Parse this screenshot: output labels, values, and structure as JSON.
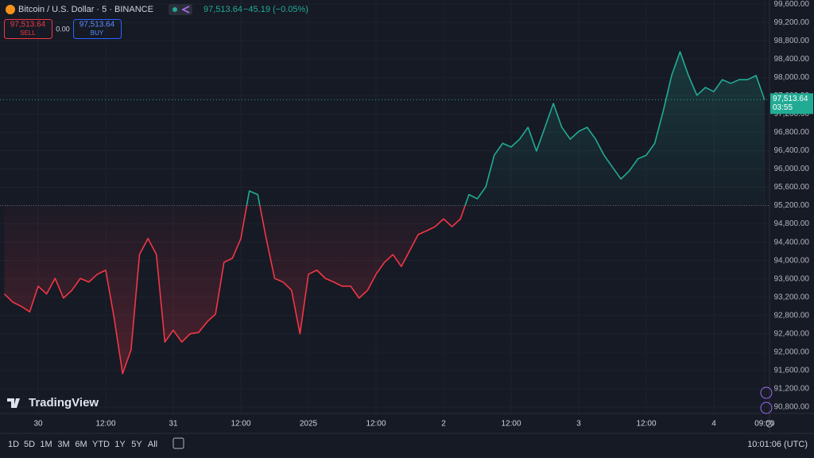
{
  "chart_data": {
    "type": "baseline",
    "header": {
      "symbol": "Bitcoin / U.S. Dollar · 5 · BINANCE",
      "price": "97,513.64",
      "change": "−45.19 (−0.05%)"
    },
    "trade": {
      "sell_price": "97,513.64",
      "sell": "SELL",
      "spread": "0.00",
      "buy_price": "97,513.64",
      "buy": "BUY"
    },
    "categories": [
      null,
      null,
      null,
      null,
      "30",
      null,
      null,
      null,
      null,
      null,
      null,
      null,
      "12:00",
      null,
      null,
      null,
      null,
      null,
      null,
      null,
      "31",
      null,
      null,
      null,
      null,
      null,
      null,
      null,
      "12:00",
      null,
      null,
      null,
      null,
      null,
      null,
      null,
      "2025",
      null,
      null,
      null,
      null,
      null,
      null,
      null,
      "12:00",
      null,
      null,
      null,
      null,
      null,
      null,
      null,
      "2",
      null,
      null,
      null,
      null,
      null,
      null,
      null,
      "12:00",
      null,
      null,
      null,
      null,
      null,
      null,
      null,
      "3",
      null,
      null,
      null,
      null,
      null,
      null,
      null,
      "12:00",
      null,
      null,
      null,
      null,
      null,
      null,
      null,
      "4",
      null,
      null,
      null,
      null,
      null,
      "09:00"
    ],
    "values": [
      93270,
      93090,
      93000,
      92880,
      93440,
      93270,
      93610,
      93180,
      93350,
      93610,
      93530,
      93700,
      93790,
      92740,
      91530,
      92050,
      94130,
      94480,
      94130,
      92220,
      92480,
      92220,
      92400,
      92430,
      92660,
      92830,
      93960,
      94050,
      94480,
      95520,
      95440,
      94480,
      93610,
      93530,
      93350,
      92400,
      93700,
      93790,
      93610,
      93530,
      93440,
      93440,
      93180,
      93350,
      93700,
      93960,
      94130,
      93870,
      94220,
      94570,
      94650,
      94740,
      94910,
      94740,
      94910,
      95440,
      95350,
      95610,
      96300,
      96560,
      96480,
      96650,
      96910,
      96390,
      96910,
      97430,
      96910,
      96650,
      96820,
      96910,
      96650,
      96300,
      96040,
      95780,
      95960,
      96220,
      96300,
      96560,
      97260,
      98040,
      98560,
      98040,
      97610,
      97780,
      97690,
      97950,
      97870,
      97950,
      97950,
      98040,
      97513.64
    ],
    "last_label": "97,513.64",
    "countdown": "03:55",
    "baseline": 95200,
    "color_above": "#22ab94",
    "color_below": "#f23645",
    "ylim": [
      90660,
      99690
    ],
    "yticks": [
      {
        "value": 90800,
        "label": "90,800.00"
      },
      {
        "value": 91200,
        "label": "91,200.00"
      },
      {
        "value": 91600,
        "label": "91,600.00"
      },
      {
        "value": 92000,
        "label": "92,000.00"
      },
      {
        "value": 92400,
        "label": "92,400.00"
      },
      {
        "value": 92800,
        "label": "92,800.00"
      },
      {
        "value": 93200,
        "label": "93,200.00"
      },
      {
        "value": 93600,
        "label": "93,600.00"
      },
      {
        "value": 94000,
        "label": "94,000.00"
      },
      {
        "value": 94400,
        "label": "94,400.00"
      },
      {
        "value": 94800,
        "label": "94,800.00"
      },
      {
        "value": 95200,
        "label": "95,200.00"
      },
      {
        "value": 95600,
        "label": "95,600.00"
      },
      {
        "value": 96000,
        "label": "96,000.00"
      },
      {
        "value": 96400,
        "label": "96,400.00"
      },
      {
        "value": 96800,
        "label": "96,800.00"
      },
      {
        "value": 97200,
        "label": "97,200.00"
      },
      {
        "value": 97600,
        "label": "97,600.00"
      },
      {
        "value": 98000,
        "label": "98,000.00"
      },
      {
        "value": 98400,
        "label": "98,400.00"
      },
      {
        "value": 98800,
        "label": "98,800.00"
      },
      {
        "value": 99200,
        "label": "99,200.00"
      },
      {
        "value": 99600,
        "label": "99,600.00"
      }
    ],
    "grid": true,
    "watermark": "TradingView",
    "ranges": [
      "1D",
      "5D",
      "1M",
      "3M",
      "6M",
      "YTD",
      "1Y",
      "5Y",
      "All"
    ],
    "clock": "10:01:06 (UTC)"
  }
}
